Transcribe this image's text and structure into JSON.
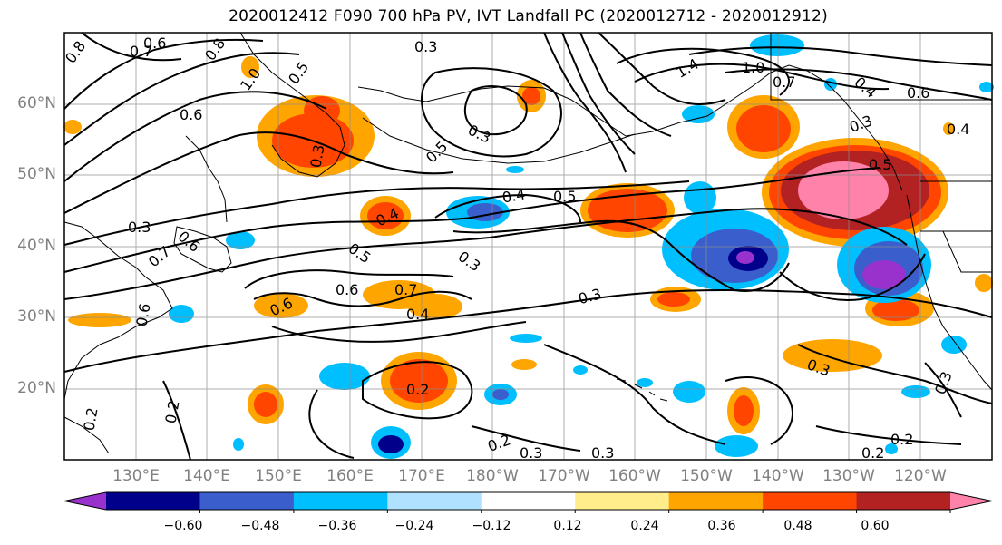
{
  "title": "2020012412 F090 700 hPa PV, IVT Landfall PC (2020012712 - 2020012912)",
  "map": {
    "lat_labels": [
      "60°N",
      "50°N",
      "40°N",
      "30°N",
      "20°N"
    ],
    "lon_labels": [
      "130°E",
      "140°E",
      "150°E",
      "160°E",
      "170°E",
      "180°W",
      "170°W",
      "160°W",
      "150°W",
      "140°W",
      "130°W",
      "120°W"
    ],
    "grid": true,
    "contour_labels": [
      {
        "text": "0.8"
      },
      {
        "text": "0.7"
      },
      {
        "text": "0.6"
      },
      {
        "text": "0.8"
      },
      {
        "text": "1.0"
      },
      {
        "text": "0.5"
      },
      {
        "text": "0.3"
      },
      {
        "text": "0.3"
      },
      {
        "text": "0.6"
      },
      {
        "text": "0.5"
      },
      {
        "text": "0.3"
      },
      {
        "text": "1.4"
      },
      {
        "text": "1.0"
      },
      {
        "text": "0.7"
      },
      {
        "text": "0.4"
      },
      {
        "text": "0.6"
      },
      {
        "text": "0.3"
      },
      {
        "text": "0.4"
      },
      {
        "text": "0.5"
      },
      {
        "text": "0.4"
      },
      {
        "text": "0.5"
      },
      {
        "text": "0.4"
      },
      {
        "text": "0.3"
      },
      {
        "text": "0.5"
      },
      {
        "text": "0.6"
      },
      {
        "text": "0.7"
      },
      {
        "text": "0.4"
      },
      {
        "text": "0.3"
      },
      {
        "text": "0.6"
      },
      {
        "text": "0.6"
      },
      {
        "text": "0.2"
      },
      {
        "text": "0.2"
      },
      {
        "text": "0.2"
      },
      {
        "text": "0.3"
      },
      {
        "text": "0.3"
      },
      {
        "text": "0.3"
      },
      {
        "text": "0.3"
      },
      {
        "text": "0.2"
      },
      {
        "text": "0.2"
      },
      {
        "text": "0.2"
      },
      {
        "text": "0.6"
      },
      {
        "text": "0.3"
      },
      {
        "text": "0.7"
      }
    ]
  },
  "colorbar": {
    "ticks": [
      "−0.60",
      "−0.48",
      "−0.36",
      "−0.24",
      "−0.12",
      "0.12",
      "0.24",
      "0.36",
      "0.48",
      "0.60"
    ],
    "colors": [
      "#9932CC",
      "#00008B",
      "#3A5FCD",
      "#00BFFF",
      "#B0E2FF",
      "#FFFFFF",
      "#FFEC8B",
      "#FFA500",
      "#FF4500",
      "#B22222",
      "#FF82AB"
    ]
  }
}
